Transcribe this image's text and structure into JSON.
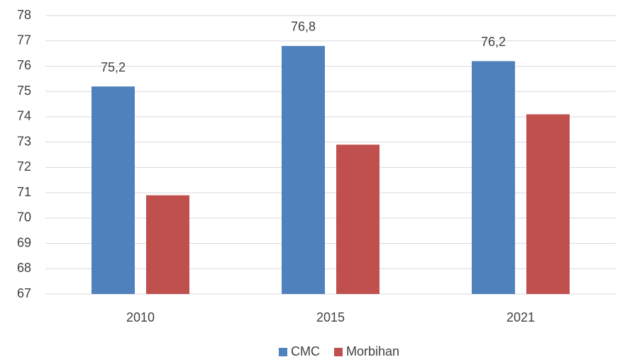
{
  "chart_data": {
    "type": "bar",
    "categories": [
      "2010",
      "2015",
      "2021"
    ],
    "series": [
      {
        "name": "CMC",
        "color": "#4f81bd",
        "values": [
          75.2,
          76.8,
          76.2
        ],
        "value_labels": [
          "75,2",
          "76,8",
          "76,2"
        ]
      },
      {
        "name": "Morbihan",
        "color": "#c0504d",
        "values": [
          70.9,
          72.9,
          74.1
        ]
      }
    ],
    "ylim": [
      67,
      78
    ],
    "yticks": [
      67,
      68,
      69,
      70,
      71,
      72,
      73,
      74,
      75,
      76,
      77,
      78
    ],
    "grid": true,
    "legend": "bottom"
  }
}
